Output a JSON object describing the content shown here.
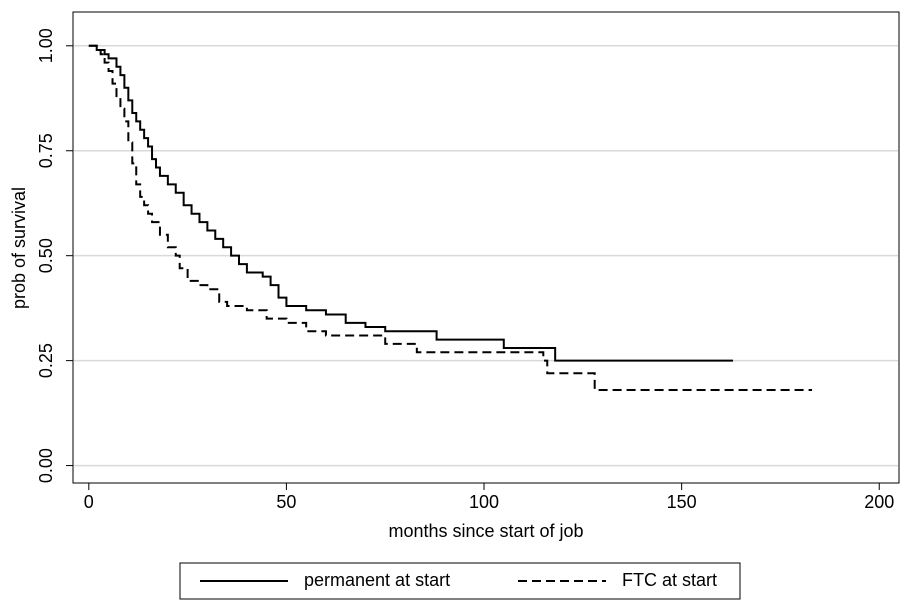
{
  "chart_data": {
    "type": "step",
    "x_label": "months since start of job",
    "y_label": "prob of survival",
    "xlim": [
      -4,
      205
    ],
    "xticks": [
      0,
      50,
      100,
      150,
      200
    ],
    "ylim": [
      -0.0415,
      1.0805
    ],
    "yticks": [
      {
        "value": 0,
        "label": "0.00"
      },
      {
        "value": 0.25,
        "label": "0.25"
      },
      {
        "value": 0.5,
        "label": "0.50"
      },
      {
        "value": 0.75,
        "label": "0.75"
      },
      {
        "value": 1,
        "label": "1.00"
      }
    ],
    "grid": true,
    "legend": "bottom",
    "series": [
      {
        "name": "permanent at start",
        "color": "#000000",
        "dash": "solid",
        "x": [
          0,
          2,
          4,
          5,
          7,
          8,
          9,
          10,
          11,
          12,
          13,
          14,
          15,
          16,
          17,
          18,
          20,
          22,
          24,
          26,
          28,
          30,
          32,
          34,
          36,
          38,
          40,
          44,
          46,
          48,
          50,
          55,
          60,
          65,
          70,
          75,
          88,
          105,
          118,
          163
        ],
        "values": [
          1.0,
          0.99,
          0.98,
          0.97,
          0.95,
          0.93,
          0.9,
          0.87,
          0.84,
          0.82,
          0.8,
          0.78,
          0.76,
          0.73,
          0.71,
          0.69,
          0.67,
          0.65,
          0.62,
          0.6,
          0.58,
          0.56,
          0.54,
          0.52,
          0.5,
          0.48,
          0.46,
          0.45,
          0.43,
          0.4,
          0.38,
          0.37,
          0.36,
          0.34,
          0.33,
          0.32,
          0.3,
          0.28,
          0.25,
          0.25
        ]
      },
      {
        "name": "FTC at start",
        "color": "#000000",
        "dash": "dashed",
        "x": [
          0,
          2,
          3,
          4,
          5,
          6,
          7,
          8,
          9,
          10,
          11,
          12,
          13,
          14,
          15,
          16,
          18,
          20,
          22,
          23,
          25,
          28,
          30,
          33,
          35,
          40,
          45,
          50,
          55,
          60,
          75,
          77,
          83,
          115,
          116,
          128,
          183
        ],
        "values": [
          1.0,
          0.99,
          0.98,
          0.96,
          0.94,
          0.91,
          0.88,
          0.85,
          0.82,
          0.77,
          0.72,
          0.67,
          0.64,
          0.62,
          0.6,
          0.58,
          0.55,
          0.52,
          0.5,
          0.47,
          0.44,
          0.43,
          0.42,
          0.39,
          0.38,
          0.37,
          0.35,
          0.34,
          0.32,
          0.31,
          0.29,
          0.29,
          0.27,
          0.25,
          0.22,
          0.18,
          0.18
        ]
      }
    ]
  }
}
